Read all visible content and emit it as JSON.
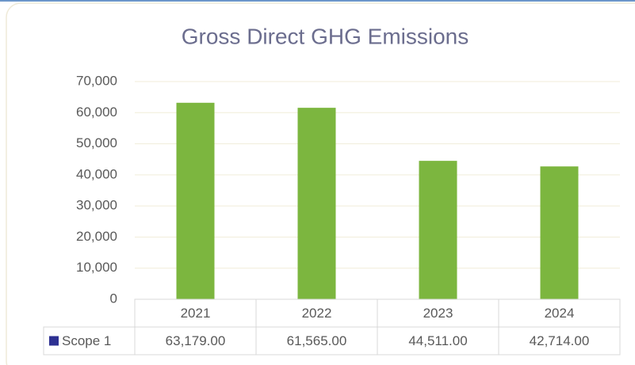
{
  "chart_data": {
    "type": "bar",
    "title": "Gross Direct GHG Emissions",
    "categories": [
      "2021",
      "2022",
      "2023",
      "2024"
    ],
    "series": [
      {
        "name": "Scope 1",
        "color": "#7cb63f",
        "legend_color": "#2e3192",
        "values": [
          63179,
          61565,
          44511,
          42714
        ],
        "value_labels": [
          "63,179.00",
          "61,565.00",
          "44,511.00",
          "42,714.00"
        ]
      }
    ],
    "ylim": [
      0,
      70000
    ],
    "yticks": [
      0,
      {
        "value": 10000,
        "label": "10,000"
      },
      {
        "value": 20000,
        "label": "20,000"
      },
      {
        "value": 30000,
        "label": "30,000"
      },
      {
        "value": 40000,
        "label": "40,000"
      },
      {
        "value": 50000,
        "label": "50,000"
      },
      {
        "value": 60000,
        "label": "60,000"
      },
      {
        "value": 70000,
        "label": "70,000"
      }
    ],
    "grid": true,
    "data_table": true
  }
}
